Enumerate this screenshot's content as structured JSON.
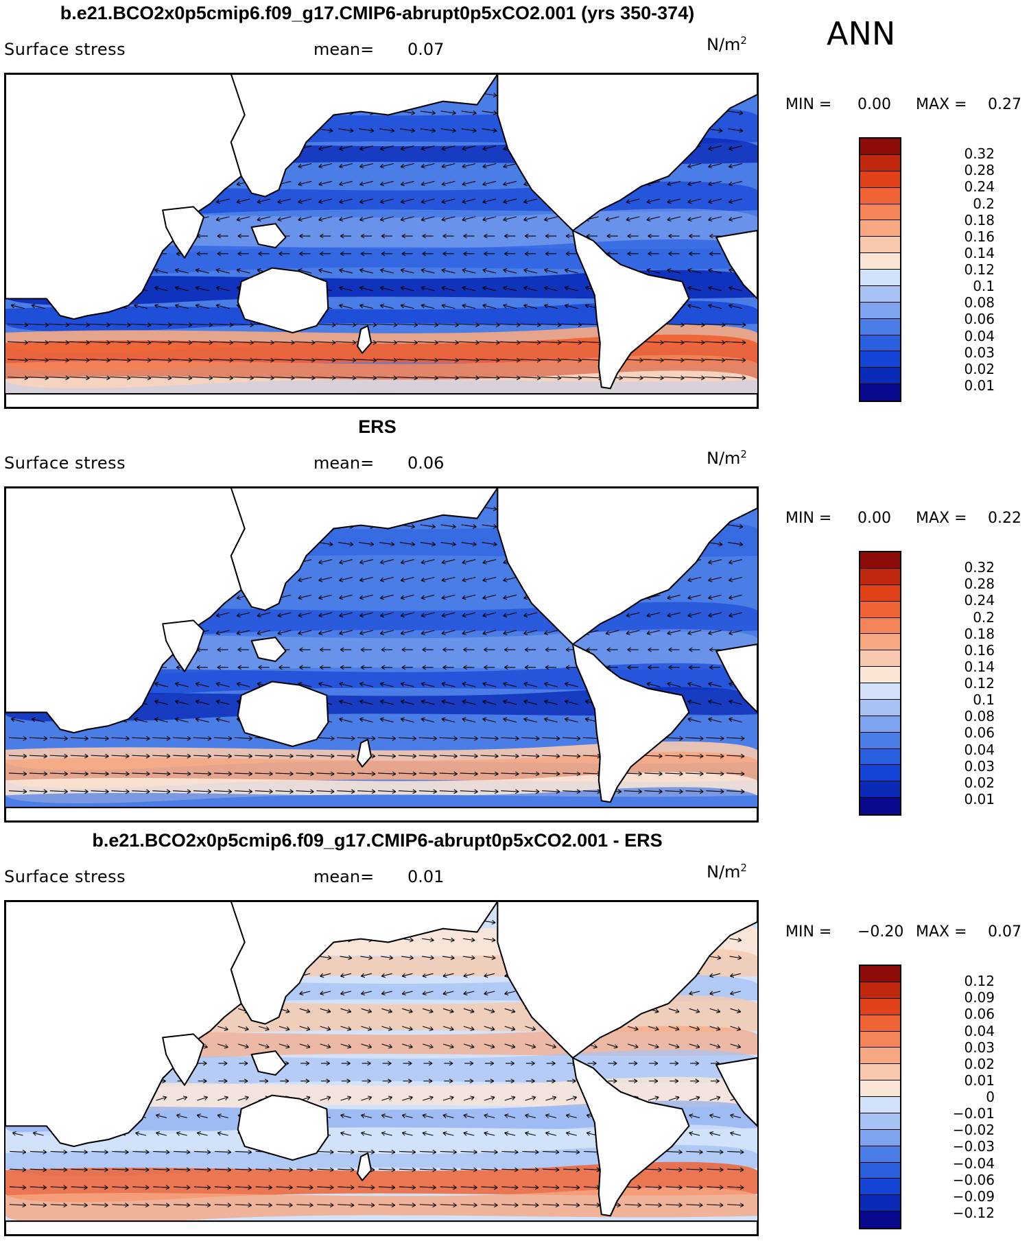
{
  "season": "ANN",
  "colors": {
    "blues": [
      "#08098c",
      "#0a2bb8",
      "#1444d6",
      "#2a5fe0",
      "#4b7de6",
      "#7da2ee",
      "#a7c3f4",
      "#d2e2fa"
    ],
    "reds": [
      "#fbe6d6",
      "#f8c9ad",
      "#f6a882",
      "#f38559",
      "#ef6334",
      "#e2421a",
      "#c0280e",
      "#8c0c08"
    ],
    "land": "#ffffff",
    "coast": "#000000",
    "arrow": "#000000"
  },
  "panels": [
    {
      "title": "b.e21.BCO2x0p5cmip6.f09_g17.CMIP6-abrupt0p5xCO2.001 (yrs 350-374)",
      "variable": "Surface stress",
      "mean_label": "mean=",
      "mean_value": "0.07",
      "units": "N/m",
      "units_exp": "2",
      "min_label": "MIN =",
      "min_value": "0.00",
      "max_label": "MAX =",
      "max_value": "0.27",
      "colorbar_labels": [
        "0.32",
        "0.28",
        "0.24",
        "0.2",
        "0.18",
        "0.16",
        "0.14",
        "0.12",
        "0.1",
        "0.08",
        "0.06",
        "0.04",
        "0.03",
        "0.02",
        "0.01"
      ]
    },
    {
      "title": "ERS",
      "variable": "Surface stress",
      "mean_label": "mean=",
      "mean_value": "0.06",
      "units": "N/m",
      "units_exp": "2",
      "min_label": "MIN =",
      "min_value": "0.00",
      "max_label": "MAX =",
      "max_value": "0.22",
      "colorbar_labels": [
        "0.32",
        "0.28",
        "0.24",
        "0.2",
        "0.18",
        "0.16",
        "0.14",
        "0.12",
        "0.1",
        "0.08",
        "0.06",
        "0.04",
        "0.03",
        "0.02",
        "0.01"
      ]
    },
    {
      "title": "b.e21.BCO2x0p5cmip6.f09_g17.CMIP6-abrupt0p5xCO2.001 - ERS",
      "variable": "Surface stress",
      "mean_label": "mean=",
      "mean_value": "0.01",
      "units": "N/m",
      "units_exp": "2",
      "min_label": "MIN =",
      "min_value": "−0.20",
      "max_label": "MAX =",
      "max_value": "0.07",
      "colorbar_labels": [
        "0.12",
        "0.09",
        "0.06",
        "0.04",
        "0.03",
        "0.02",
        "0.01",
        "0",
        "−0.01",
        "−0.02",
        "−0.03",
        "−0.04",
        "−0.06",
        "−0.09",
        "−0.12"
      ]
    }
  ]
}
